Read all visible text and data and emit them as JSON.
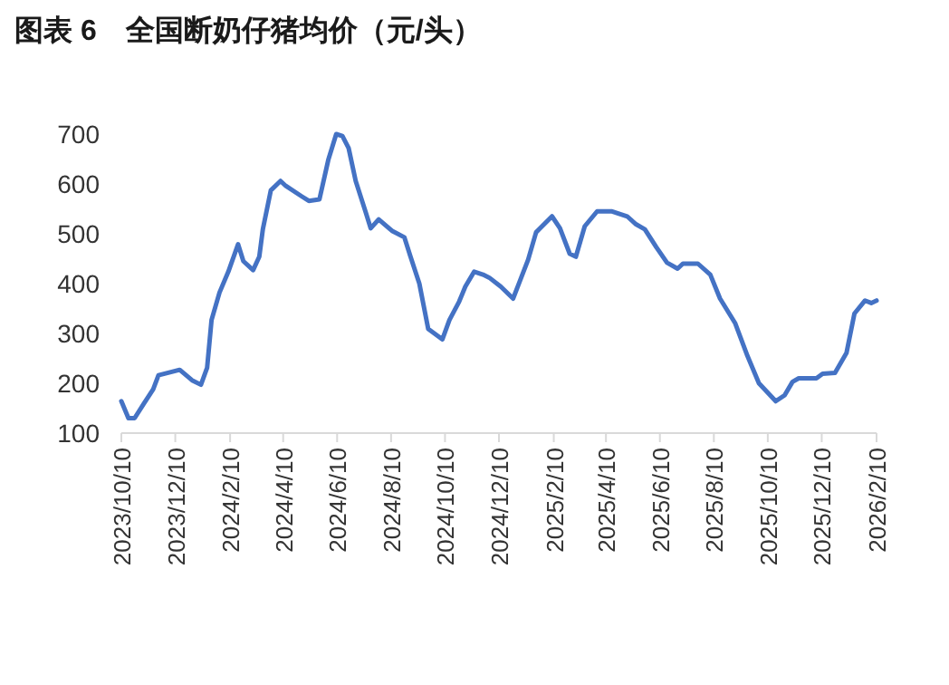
{
  "chart_data": {
    "type": "line",
    "title": "图表 6　全国断奶仔猪均价（元/头）",
    "x": [
      "2023-10-10",
      "2023-10-18",
      "2023-10-25",
      "2023-11-04",
      "2023-11-15",
      "2023-11-21",
      "2023-12-02",
      "2023-12-15",
      "2023-12-29",
      "2024-01-08",
      "2024-01-15",
      "2024-01-20",
      "2024-01-29",
      "2024-02-08",
      "2024-02-19",
      "2024-02-25",
      "2024-03-07",
      "2024-03-14",
      "2024-03-18",
      "2024-03-27",
      "2024-04-07",
      "2024-04-13",
      "2024-05-01",
      "2024-05-09",
      "2024-05-21",
      "2024-05-31",
      "2024-06-09",
      "2024-06-16",
      "2024-06-23",
      "2024-07-01",
      "2024-07-12",
      "2024-07-18",
      "2024-07-27",
      "2024-08-11",
      "2024-08-25",
      "2024-09-01",
      "2024-09-11",
      "2024-09-21",
      "2024-10-07",
      "2024-10-15",
      "2024-10-26",
      "2024-11-02",
      "2024-11-12",
      "2024-11-22",
      "2024-11-29",
      "2024-12-12",
      "2024-12-26",
      "2025-01-02",
      "2025-01-12",
      "2025-01-21",
      "2025-02-08",
      "2025-02-17",
      "2025-02-28",
      "2025-03-07",
      "2025-03-17",
      "2025-03-31",
      "2025-04-17",
      "2025-05-04",
      "2025-05-14",
      "2025-05-24",
      "2025-06-06",
      "2025-06-18",
      "2025-06-30",
      "2025-07-06",
      "2025-07-23",
      "2025-08-06",
      "2025-08-17",
      "2025-09-03",
      "2025-09-17",
      "2025-09-30",
      "2025-10-19",
      "2025-10-29",
      "2025-11-07",
      "2025-11-14",
      "2025-12-04",
      "2025-12-11",
      "2025-12-25",
      "2026-01-07",
      "2026-01-16",
      "2026-01-28",
      "2026-02-04",
      "2026-02-10"
    ],
    "series": [
      {
        "color": "#4472c4",
        "values": [
          164,
          130,
          130,
          158,
          188,
          216,
          221,
          227,
          206,
          197,
          231,
          327,
          382,
          424,
          479,
          445,
          427,
          454,
          509,
          587,
          606,
          596,
          575,
          566,
          569,
          648,
          700,
          696,
          672,
          606,
          545,
          511,
          529,
          506,
          493,
          454,
          400,
          309,
          288,
          327,
          364,
          394,
          424,
          418,
          412,
          394,
          370,
          402,
          448,
          503,
          535,
          511,
          460,
          454,
          515,
          545,
          545,
          535,
          519,
          509,
          473,
          442,
          430,
          440,
          440,
          418,
          370,
          321,
          255,
          200,
          164,
          176,
          203,
          210,
          210,
          219,
          221,
          261,
          340,
          366,
          361,
          366
        ]
      }
    ],
    "xlim": [
      "2023-10-10",
      "2026-02-10"
    ],
    "xticks": [
      {
        "value": "2023-10-10",
        "label": "2023/10/10"
      },
      {
        "value": "2023-12-10",
        "label": "2023/12/10"
      },
      {
        "value": "2024-02-10",
        "label": "2024/2/10"
      },
      {
        "value": "2024-04-10",
        "label": "2024/4/10"
      },
      {
        "value": "2024-06-10",
        "label": "2024/6/10"
      },
      {
        "value": "2024-08-10",
        "label": "2024/8/10"
      },
      {
        "value": "2024-10-10",
        "label": "2024/10/10"
      },
      {
        "value": "2024-12-10",
        "label": "2024/12/10"
      },
      {
        "value": "2025-02-10",
        "label": "2025/2/10"
      },
      {
        "value": "2025-04-10",
        "label": "2025/4/10"
      },
      {
        "value": "2025-06-10",
        "label": "2025/6/10"
      },
      {
        "value": "2025-08-10",
        "label": "2025/8/10"
      },
      {
        "value": "2025-10-10",
        "label": "2025/10/10"
      },
      {
        "value": "2025-12-10",
        "label": "2025/12/10"
      },
      {
        "value": "2026-02-10",
        "label": "2026/2/10"
      }
    ],
    "ylim": [
      100,
      700
    ],
    "yticks": [
      100,
      200,
      300,
      400,
      500,
      600,
      700
    ]
  }
}
